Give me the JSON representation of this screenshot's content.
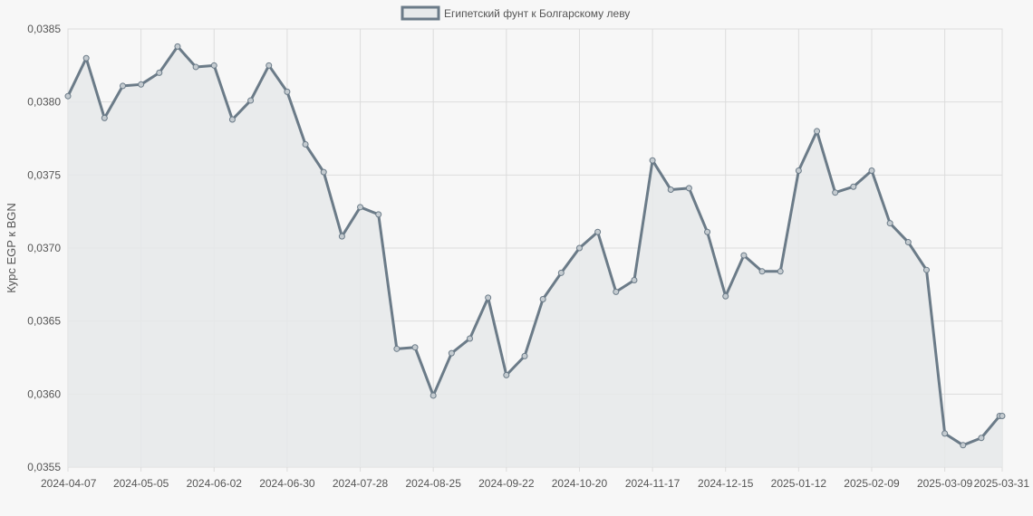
{
  "chart_data": {
    "type": "line",
    "ylabel": "Курс EGP к BGN",
    "ylim": [
      0.0355,
      0.0385
    ],
    "yticks": [
      "0,0355",
      "0,0360",
      "0,0365",
      "0,0370",
      "0,0375",
      "0,0380",
      "0,0385"
    ],
    "ytick_values": [
      0.0355,
      0.036,
      0.0365,
      0.037,
      0.0375,
      0.038,
      0.0385
    ],
    "xticks": [
      "2024-04-07",
      "2024-05-05",
      "2024-06-02",
      "2024-06-30",
      "2024-07-28",
      "2024-08-25",
      "2024-09-22",
      "2024-10-20",
      "2024-11-17",
      "2024-12-15",
      "2025-01-12",
      "2025-02-09",
      "2025-03-09",
      "2025-03-31"
    ],
    "legend_position": "top-center",
    "grid": true,
    "colors": {
      "line": "#6b7b88",
      "fill": "#e6e9ea",
      "grid": "#dcdcdc",
      "background": "#f7f7f7"
    },
    "series": [
      {
        "name": "Египетский фунт к Болгарскому леву",
        "x": [
          "2024-04-07",
          "2024-04-14",
          "2024-04-21",
          "2024-04-28",
          "2024-05-05",
          "2024-05-12",
          "2024-05-19",
          "2024-05-26",
          "2024-06-02",
          "2024-06-09",
          "2024-06-16",
          "2024-06-23",
          "2024-06-30",
          "2024-07-07",
          "2024-07-14",
          "2024-07-21",
          "2024-07-28",
          "2024-08-04",
          "2024-08-11",
          "2024-08-18",
          "2024-08-25",
          "2024-09-01",
          "2024-09-08",
          "2024-09-15",
          "2024-09-22",
          "2024-09-29",
          "2024-10-06",
          "2024-10-13",
          "2024-10-20",
          "2024-10-27",
          "2024-11-03",
          "2024-11-10",
          "2024-11-17",
          "2024-11-24",
          "2024-12-01",
          "2024-12-08",
          "2024-12-15",
          "2024-12-22",
          "2024-12-29",
          "2025-01-05",
          "2025-01-12",
          "2025-01-19",
          "2025-01-26",
          "2025-02-02",
          "2025-02-09",
          "2025-02-16",
          "2025-02-23",
          "2025-03-02",
          "2025-03-09",
          "2025-03-16",
          "2025-03-23",
          "2025-03-30",
          "2025-03-31"
        ],
        "values": [
          0.03804,
          0.0383,
          0.03789,
          0.03811,
          0.03812,
          0.0382,
          0.03838,
          0.03824,
          0.03825,
          0.03788,
          0.03801,
          0.03825,
          0.03807,
          0.03771,
          0.03752,
          0.03708,
          0.03728,
          0.03723,
          0.03631,
          0.03632,
          0.03599,
          0.03628,
          0.03638,
          0.03666,
          0.03613,
          0.03626,
          0.03665,
          0.03683,
          0.037,
          0.03711,
          0.0367,
          0.03678,
          0.0376,
          0.0374,
          0.03741,
          0.03711,
          0.03667,
          0.03695,
          0.03684,
          0.03684,
          0.03753,
          0.0378,
          0.03738,
          0.03742,
          0.03753,
          0.03717,
          0.03704,
          0.03685,
          0.03573,
          0.03565,
          0.0357,
          0.03585,
          0.03585
        ]
      }
    ]
  }
}
